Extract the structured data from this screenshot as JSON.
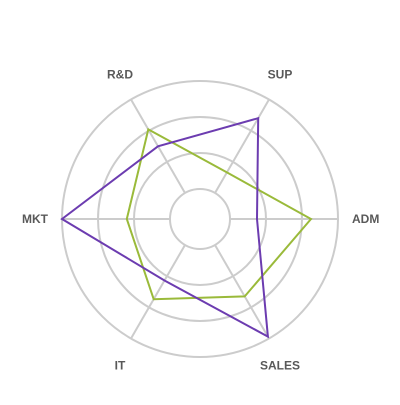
{
  "chart_data": {
    "type": "radar",
    "title": "",
    "axes": [
      "ADM",
      "SALES",
      "IT",
      "MKT",
      "R&D",
      "SUP"
    ],
    "range": [
      0,
      100
    ],
    "ring_count": 4,
    "grid": true,
    "legend": "none",
    "series": [
      {
        "color": "#9ABA3A",
        "values": [
          75,
          55,
          58,
          40,
          68,
          22
        ]
      },
      {
        "color": "#6C3CB0",
        "values": [
          25,
          98,
          38,
          100,
          50,
          80
        ]
      }
    ],
    "colors": {
      "grid": "#CCCCCC",
      "label": "#595959"
    }
  }
}
